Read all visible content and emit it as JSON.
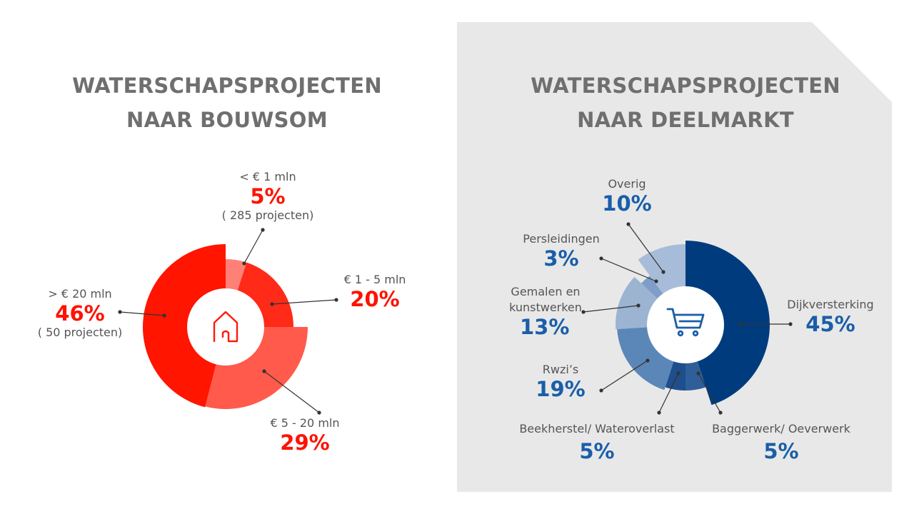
{
  "colors": {
    "red_main": "#ff1500",
    "red_mid": "#ff2a17",
    "red_light": "#ff5a4b",
    "red_pale": "#ff8076",
    "blue_dark": "#003c7d",
    "blue_mid": "#5b86b8",
    "blue_light": "#9cb3d2",
    "label_red": "#ff1200",
    "label_blue": "#1a5ea8",
    "panel_bg": "#e8e8e9",
    "title_gray": "#6f6f6f"
  },
  "left": {
    "title_line1": "WATERSCHAPSPROJECTEN",
    "title_line2": "NAAR BOUWSOM",
    "center_icon": "house-icon",
    "labels": {
      "lt1": {
        "name": "< € 1 mln",
        "pct": "5%",
        "sub": "( 285 projecten)"
      },
      "b1_5": {
        "name": "€ 1 - 5 mln",
        "pct": "20%"
      },
      "b5_20": {
        "name": "€ 5 - 20 mln",
        "pct": "29%"
      },
      "gt20": {
        "name": "> € 20 mln",
        "pct": "46%",
        "sub": "( 50 projecten)"
      }
    }
  },
  "right": {
    "title_line1": "WATERSCHAPSPROJECTEN",
    "title_line2": "NAAR DEELMARKT",
    "center_icon": "shopping-cart-icon",
    "labels": {
      "dijk": {
        "name": "Dijkversterking",
        "pct": "45%"
      },
      "bagger": {
        "name": "Baggerwerk/ Oeverwerk",
        "pct": "5%"
      },
      "beek": {
        "name": "Beekherstel/ Wateroverlast",
        "pct": "5%"
      },
      "rwzi": {
        "name": "Rwzi’s",
        "pct": "19%"
      },
      "gemalen1": {
        "name": "Gemalen en",
        "name2": "kunstwerken",
        "pct": "13%"
      },
      "pers": {
        "name": "Persleidingen",
        "pct": "3%"
      },
      "overig": {
        "name": "Overig",
        "pct": "10%"
      }
    }
  },
  "chart_data": [
    {
      "type": "pie",
      "title": "WATERSCHAPSPROJECTEN NAAR BOUWSOM",
      "categories": [
        "< € 1 mln",
        "€ 1 - 5 mln",
        "€ 5 - 20 mln",
        "> € 20 mln"
      ],
      "values": [
        5,
        20,
        29,
        46
      ],
      "annotations": [
        "( 285 projecten)",
        "( 50 projecten)"
      ]
    },
    {
      "type": "pie",
      "title": "WATERSCHAPSPROJECTEN NAAR DEELMARKT",
      "categories": [
        "Dijkversterking",
        "Baggerwerk/ Oeverwerk",
        "Beekherstel/ Wateroverlast",
        "Rwzi’s",
        "Gemalen en kunstwerken",
        "Persleidingen",
        "Overig"
      ],
      "values": [
        45,
        5,
        5,
        19,
        13,
        3,
        10
      ]
    }
  ]
}
